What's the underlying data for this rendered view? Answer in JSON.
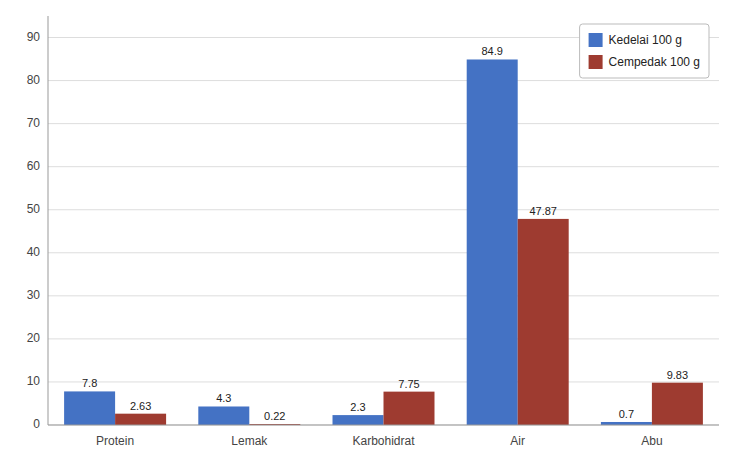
{
  "chart_data": {
    "type": "bar",
    "categories": [
      "Protein",
      "Lemak",
      "Karbohidrat",
      "Air",
      "Abu"
    ],
    "series": [
      {
        "name": "Kedelai 100 g",
        "color": "#4472C4",
        "values": [
          7.8,
          4.3,
          2.3,
          84.9,
          0.7
        ]
      },
      {
        "name": "Cempedak 100 g",
        "color": "#9E3B30",
        "values": [
          2.63,
          0.22,
          7.75,
          47.87,
          9.83
        ]
      }
    ],
    "ylim": [
      0,
      95
    ],
    "yticks": [
      0,
      10,
      20,
      30,
      40,
      50,
      60,
      70,
      80,
      90
    ],
    "grid": true,
    "legend": "upper right",
    "data_labels": true
  }
}
